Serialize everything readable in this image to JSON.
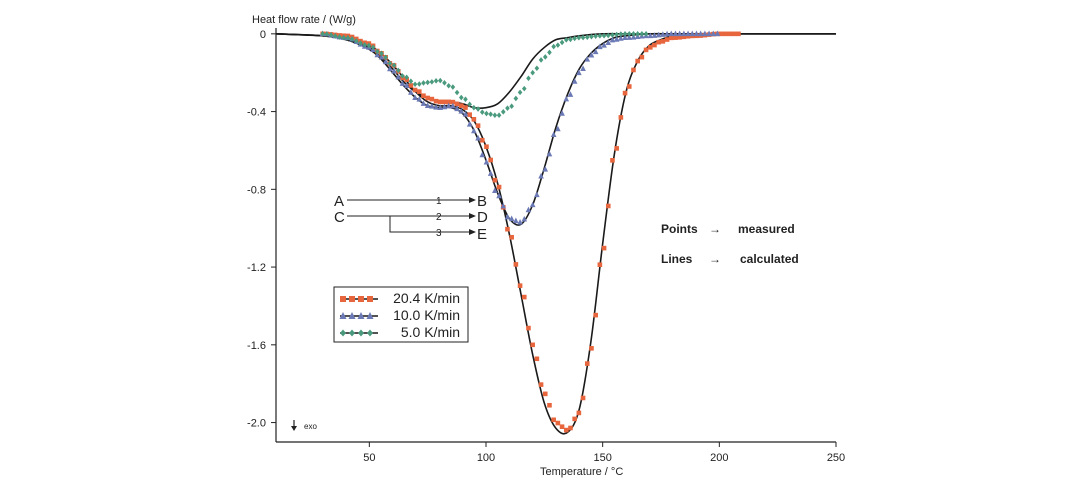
{
  "chart_data": {
    "type": "line",
    "xlabel": "Temperature / °C",
    "ylabel": "Heat flow rate / (W/g)",
    "xlim": [
      10,
      250
    ],
    "ylim": [
      -2.1,
      0.03
    ],
    "x_ticks": [
      50,
      100,
      150,
      200,
      250
    ],
    "y_ticks": [
      0,
      -0.4,
      -0.8,
      -1.2,
      -1.6,
      -2.0
    ],
    "x_tick_labels": [
      "50",
      "100",
      "150",
      "200",
      "250"
    ],
    "y_tick_labels": [
      "0",
      "-0.4",
      "-0.8",
      "-1.2",
      "-1.6",
      "-2.0"
    ],
    "grid": false,
    "legend_position": "bottom-left",
    "series": [
      {
        "name": "20.4 K/min",
        "marker": "square",
        "color": "#e8663d",
        "measured_x": [
          10,
          30,
          40,
          50,
          55,
          60,
          65,
          70,
          75,
          80,
          85,
          90,
          95,
          100,
          105,
          110,
          115,
          120,
          125,
          130,
          135,
          140,
          145,
          150,
          155,
          160,
          165,
          170,
          175,
          180,
          190,
          200,
          210
        ],
        "measured_y": [
          0,
          0,
          -0.01,
          -0.05,
          -0.1,
          -0.16,
          -0.23,
          -0.29,
          -0.33,
          -0.35,
          -0.35,
          -0.37,
          -0.44,
          -0.58,
          -0.78,
          -1.02,
          -1.3,
          -1.6,
          -1.85,
          -2.0,
          -2.04,
          -1.95,
          -1.62,
          -1.12,
          -0.62,
          -0.3,
          -0.14,
          -0.07,
          -0.04,
          -0.02,
          -0.01,
          0,
          0
        ],
        "calculated_x": [
          10,
          30,
          40,
          50,
          55,
          60,
          65,
          70,
          75,
          80,
          85,
          90,
          95,
          100,
          105,
          110,
          115,
          120,
          125,
          130,
          135,
          140,
          145,
          150,
          155,
          160,
          165,
          170,
          175,
          180,
          190,
          200,
          210,
          250
        ],
        "calculated_y": [
          0,
          -0.01,
          -0.02,
          -0.06,
          -0.1,
          -0.16,
          -0.23,
          -0.3,
          -0.35,
          -0.37,
          -0.37,
          -0.39,
          -0.45,
          -0.58,
          -0.77,
          -1.03,
          -1.34,
          -1.65,
          -1.9,
          -2.03,
          -2.05,
          -1.93,
          -1.58,
          -1.08,
          -0.62,
          -0.3,
          -0.14,
          -0.06,
          -0.03,
          -0.01,
          0,
          0,
          0,
          0
        ]
      },
      {
        "name": "10.0 K/min",
        "marker": "triangle",
        "color": "#6b79b5",
        "measured_x": [
          10,
          30,
          40,
          50,
          55,
          60,
          65,
          70,
          75,
          80,
          85,
          90,
          95,
          100,
          105,
          110,
          115,
          120,
          125,
          130,
          135,
          140,
          145,
          150,
          155,
          160,
          170,
          180,
          190,
          200
        ],
        "measured_y": [
          0,
          0,
          -0.02,
          -0.07,
          -0.12,
          -0.19,
          -0.26,
          -0.33,
          -0.37,
          -0.38,
          -0.37,
          -0.4,
          -0.5,
          -0.66,
          -0.83,
          -0.95,
          -0.97,
          -0.88,
          -0.7,
          -0.5,
          -0.33,
          -0.2,
          -0.11,
          -0.06,
          -0.03,
          -0.02,
          -0.01,
          0,
          0,
          0
        ],
        "calculated_x": [
          10,
          30,
          40,
          50,
          55,
          60,
          65,
          70,
          75,
          80,
          85,
          90,
          95,
          100,
          105,
          110,
          115,
          120,
          125,
          130,
          135,
          140,
          145,
          150,
          155,
          160,
          170,
          180,
          190,
          200,
          250
        ],
        "calculated_y": [
          0,
          -0.01,
          -0.03,
          -0.08,
          -0.13,
          -0.2,
          -0.27,
          -0.33,
          -0.37,
          -0.38,
          -0.38,
          -0.41,
          -0.5,
          -0.65,
          -0.82,
          -0.95,
          -0.98,
          -0.88,
          -0.69,
          -0.48,
          -0.31,
          -0.18,
          -0.1,
          -0.05,
          -0.02,
          -0.01,
          0,
          0,
          0,
          0,
          0
        ]
      },
      {
        "name": "5.0 K/min",
        "marker": "diamond",
        "color": "#4a9a7e",
        "measured_x": [
          10,
          30,
          40,
          50,
          55,
          60,
          65,
          70,
          75,
          80,
          85,
          90,
          95,
          100,
          105,
          110,
          115,
          120,
          125,
          130,
          135,
          140,
          150,
          160,
          170
        ],
        "measured_y": [
          0,
          0,
          -0.02,
          -0.06,
          -0.1,
          -0.16,
          -0.22,
          -0.26,
          -0.25,
          -0.24,
          -0.27,
          -0.33,
          -0.38,
          -0.41,
          -0.42,
          -0.38,
          -0.3,
          -0.2,
          -0.12,
          -0.06,
          -0.03,
          -0.02,
          -0.01,
          0,
          0
        ],
        "calculated_x": [
          10,
          30,
          40,
          50,
          55,
          60,
          65,
          70,
          75,
          80,
          85,
          90,
          95,
          100,
          105,
          110,
          115,
          120,
          125,
          130,
          135,
          140,
          150,
          160,
          170,
          250
        ],
        "calculated_y": [
          0,
          -0.01,
          -0.03,
          -0.07,
          -0.12,
          -0.18,
          -0.25,
          -0.3,
          -0.33,
          -0.35,
          -0.35,
          -0.36,
          -0.38,
          -0.38,
          -0.36,
          -0.3,
          -0.22,
          -0.13,
          -0.07,
          -0.03,
          -0.02,
          -0.01,
          0,
          0,
          0,
          0
        ]
      }
    ]
  },
  "scheme": {
    "species": [
      "A",
      "B",
      "C",
      "D",
      "E"
    ],
    "steps": [
      "1",
      "2",
      "3"
    ]
  },
  "legend": [
    {
      "label": "20.4 K/min",
      "marker": "square",
      "color": "#e8663d"
    },
    {
      "label": "10.0 K/min",
      "marker": "triangle",
      "color": "#6b79b5"
    },
    {
      "label": "5.0 K/min",
      "marker": "diamond",
      "color": "#4a9a7e"
    }
  ],
  "notes": {
    "points_label": "Points",
    "points_value": "measured",
    "lines_label": "Lines",
    "lines_value": "calculated",
    "arrow_glyph": "→",
    "exo_label": "exo"
  },
  "colors": {
    "axis": "#222222",
    "calculated_line": "#1a1a1a"
  }
}
